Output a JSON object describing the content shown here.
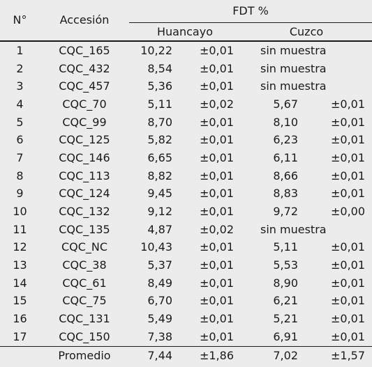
{
  "headers": {
    "n": "N°",
    "accession": "Accesión",
    "fdt": "FDT %",
    "huancayo": "Huancayo",
    "cuzco": "Cuzco"
  },
  "rows": [
    {
      "n": "1",
      "acc": "CQC_165",
      "hv": "10,22",
      "he": "±0,01",
      "cv": "sin muestra",
      "ce": ""
    },
    {
      "n": "2",
      "acc": "CQC_432",
      "hv": "8,54",
      "he": "±0,01",
      "cv": "sin muestra",
      "ce": ""
    },
    {
      "n": "3",
      "acc": "CQC_457",
      "hv": "5,36",
      "he": "±0,01",
      "cv": "sin muestra",
      "ce": ""
    },
    {
      "n": "4",
      "acc": "CQC_70",
      "hv": "5,11",
      "he": "±0,02",
      "cv": "5,67",
      "ce": "±0,01"
    },
    {
      "n": "5",
      "acc": "CQC_99",
      "hv": "8,70",
      "he": "±0,01",
      "cv": "8,10",
      "ce": "±0,01"
    },
    {
      "n": "6",
      "acc": "CQC_125",
      "hv": "5,82",
      "he": "±0,01",
      "cv": "6,23",
      "ce": "±0,01"
    },
    {
      "n": "7",
      "acc": "CQC_146",
      "hv": "6,65",
      "he": "±0,01",
      "cv": "6,11",
      "ce": "±0,01"
    },
    {
      "n": "8",
      "acc": "CQC_113",
      "hv": "8,82",
      "he": "±0,01",
      "cv": "8,66",
      "ce": "±0,01"
    },
    {
      "n": "9",
      "acc": "CQC_124",
      "hv": "9,45",
      "he": "±0,01",
      "cv": "8,83",
      "ce": "±0,01"
    },
    {
      "n": "10",
      "acc": "CQC_132",
      "hv": "9,12",
      "he": "±0,01",
      "cv": "9,72",
      "ce": "±0,00"
    },
    {
      "n": "11",
      "acc": "CQC_135",
      "hv": "4,87",
      "he": "±0,02",
      "cv": "sin muestra",
      "ce": ""
    },
    {
      "n": "12",
      "acc": "CQC_NC",
      "hv": "10,43",
      "he": "±0,01",
      "cv": "5,11",
      "ce": "±0,01"
    },
    {
      "n": "13",
      "acc": "CQC_38",
      "hv": "5,37",
      "he": "±0,01",
      "cv": "5,53",
      "ce": "±0,01"
    },
    {
      "n": "14",
      "acc": "CQC_61",
      "hv": "8,49",
      "he": "±0,01",
      "cv": "8,90",
      "ce": "±0,01"
    },
    {
      "n": "15",
      "acc": "CQC_75",
      "hv": "6,70",
      "he": "±0,01",
      "cv": "6,21",
      "ce": "±0,01"
    },
    {
      "n": "16",
      "acc": "CQC_131",
      "hv": "5,49",
      "he": "±0,01",
      "cv": "5,21",
      "ce": "±0,01"
    },
    {
      "n": "17",
      "acc": "CQC_150",
      "hv": "7,38",
      "he": "±0,01",
      "cv": "6,91",
      "ce": "±0,01"
    }
  ],
  "average": {
    "label": "Promedio",
    "hv": "7,44",
    "he": "±1,86",
    "cv": "7,02",
    "ce": "±1,57"
  }
}
